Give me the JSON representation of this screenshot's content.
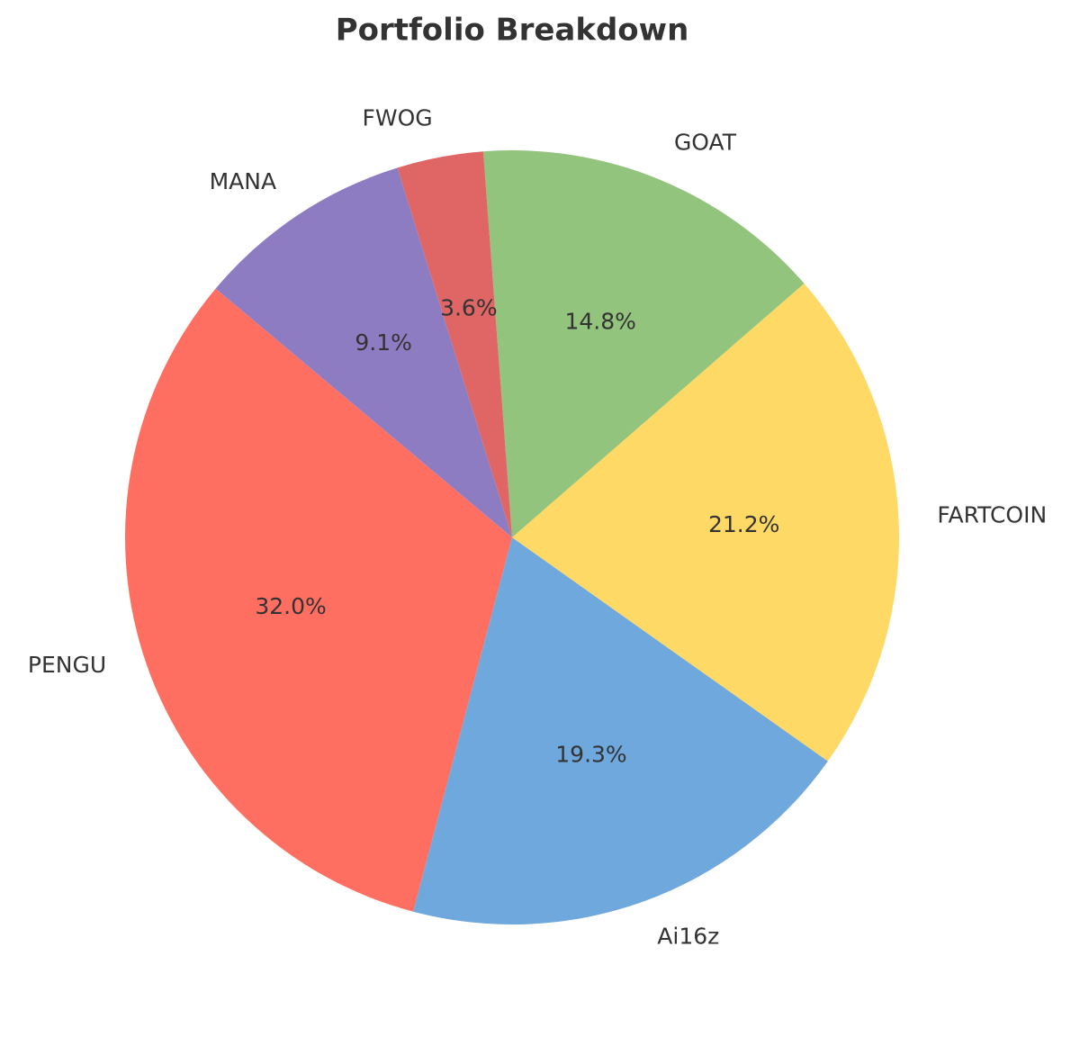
{
  "chart_data": {
    "type": "pie",
    "title": "Portfolio Breakdown",
    "categories": [
      "PENGU",
      "Ai16z",
      "FARTCOIN",
      "GOAT",
      "FWOG",
      "MANA"
    ],
    "values": [
      32.0,
      19.3,
      21.2,
      14.8,
      3.6,
      9.1
    ],
    "value_labels": [
      "32.0%",
      "19.3%",
      "21.2%",
      "14.8%",
      "3.6%",
      "9.1%"
    ],
    "colors": [
      "#ff6f61",
      "#6fa8dc",
      "#ffd966",
      "#93c47d",
      "#e06666",
      "#8e7cc3"
    ]
  }
}
